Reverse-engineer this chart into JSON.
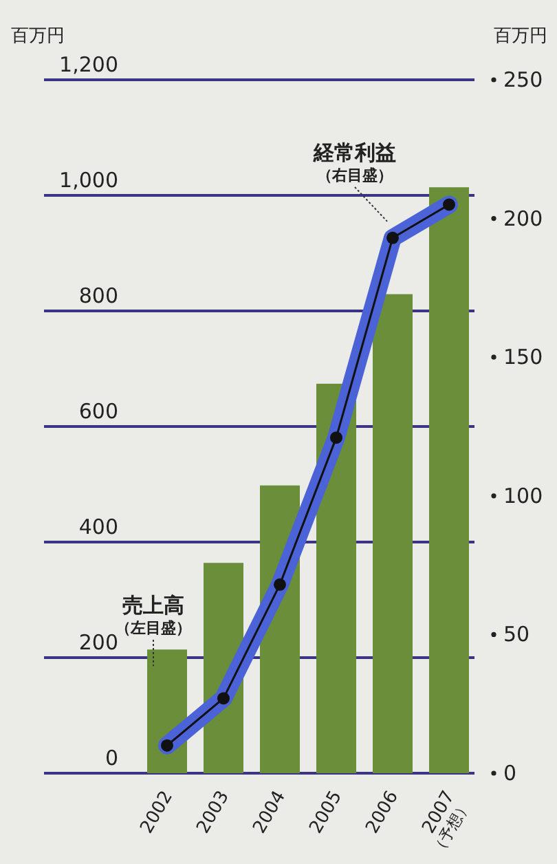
{
  "chart_data": {
    "type": "bar",
    "ylabel": "百万円",
    "y2label": "百万円",
    "categories": [
      "2002",
      "2003",
      "2004",
      "2005",
      "2006",
      "2007（予想）"
    ],
    "series": [
      {
        "name": "売上高（左目盛）",
        "color": "#6b8e3a",
        "values": [
          214,
          364,
          498,
          674,
          829,
          1014
        ]
      },
      {
        "name": "経常利益（右目盛）",
        "type": "line",
        "axis": "y2",
        "color": "#4b63d6",
        "marker": "circle",
        "values": [
          10,
          27,
          68,
          121,
          193,
          205
        ]
      }
    ],
    "ylim": [
      0,
      1200
    ],
    "yticks": [
      0,
      200,
      400,
      600,
      {
        "value": 800,
        "label": "800"
      },
      {
        "value": 1000,
        "label": "1,000"
      },
      {
        "value": 1200,
        "label": "1,200"
      }
    ],
    "y2lim": [
      0,
      250
    ],
    "y2ticks": [
      0,
      50,
      100,
      150,
      200,
      250
    ],
    "grid": "y"
  }
}
